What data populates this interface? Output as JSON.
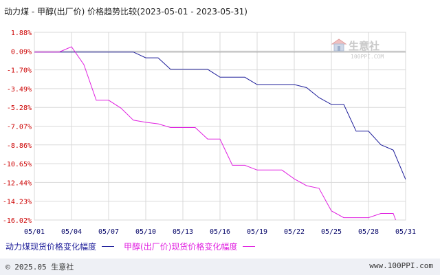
{
  "title": "动力煤 - 甲醇(出厂价) 价格趋势比较(2023-05-01 - 2023-05-31)",
  "watermark": {
    "text": "生意社",
    "url": "100PPI.COM"
  },
  "legend": [
    {
      "label": "动力煤现货价格变化幅度",
      "color": "#1c1c99"
    },
    {
      "label": "甲醇(出厂价)现货价格变化幅度",
      "color": "#e020e0"
    }
  ],
  "footer": {
    "left": "© 2025.05 生意社",
    "right": "www.100PPI.com"
  },
  "colors": {
    "axis_text_y": "#cc0000",
    "axis_text_x": "#000066",
    "grid": "#d9d9d9",
    "zero_line": "#999999"
  },
  "chart_data": {
    "type": "line",
    "x_tick_labels": [
      "05/01",
      "05/04",
      "05/07",
      "05/10",
      "05/13",
      "05/16",
      "05/19",
      "05/22",
      "05/25",
      "05/28",
      "05/31"
    ],
    "y_tick_labels": [
      "1.88%",
      "0.09%",
      "-1.70%",
      "-3.49%",
      "-5.28%",
      "-7.07%",
      "-8.86%",
      "-10.65%",
      "-12.44%",
      "-14.23%",
      "-16.02%"
    ],
    "ylim": [
      -16.02,
      1.88
    ],
    "xlim": [
      1,
      31
    ],
    "series": [
      {
        "name": "动力煤现货价格变化幅度",
        "color": "#1c1c99",
        "points": [
          [
            1,
            0.0
          ],
          [
            4,
            0.0
          ],
          [
            5,
            0.0
          ],
          [
            6,
            0.0
          ],
          [
            7,
            0.0
          ],
          [
            8,
            0.0
          ],
          [
            9,
            0.0
          ],
          [
            10,
            -0.55
          ],
          [
            11,
            -0.55
          ],
          [
            12,
            -1.65
          ],
          [
            13,
            -1.65
          ],
          [
            14,
            -1.65
          ],
          [
            15,
            -1.65
          ],
          [
            16,
            -2.4
          ],
          [
            17,
            -2.4
          ],
          [
            18,
            -2.4
          ],
          [
            19,
            -3.1
          ],
          [
            20,
            -3.1
          ],
          [
            21,
            -3.1
          ],
          [
            22,
            -3.1
          ],
          [
            23,
            -3.4
          ],
          [
            24,
            -4.35
          ],
          [
            25,
            -5.0
          ],
          [
            26,
            -5.0
          ],
          [
            27,
            -7.55
          ],
          [
            28,
            -7.55
          ],
          [
            29,
            -8.85
          ],
          [
            30,
            -9.35
          ],
          [
            31,
            -12.15
          ]
        ]
      },
      {
        "name": "甲醇(出厂价)现货价格变化幅度",
        "color": "#e020e0",
        "points": [
          [
            1,
            0.0
          ],
          [
            2,
            0.0
          ],
          [
            3,
            0.0
          ],
          [
            4,
            0.5
          ],
          [
            5,
            -1.2
          ],
          [
            6,
            -4.6
          ],
          [
            7,
            -4.6
          ],
          [
            8,
            -5.35
          ],
          [
            9,
            -6.5
          ],
          [
            10,
            -6.7
          ],
          [
            11,
            -6.85
          ],
          [
            12,
            -7.2
          ],
          [
            13,
            -7.2
          ],
          [
            14,
            -7.2
          ],
          [
            15,
            -8.3
          ],
          [
            16,
            -8.3
          ],
          [
            17,
            -10.8
          ],
          [
            18,
            -10.8
          ],
          [
            19,
            -11.25
          ],
          [
            20,
            -11.25
          ],
          [
            21,
            -11.25
          ],
          [
            22,
            -12.1
          ],
          [
            23,
            -12.75
          ],
          [
            24,
            -13.0
          ],
          [
            25,
            -15.15
          ],
          [
            26,
            -15.8
          ],
          [
            27,
            -15.8
          ],
          [
            28,
            -15.8
          ],
          [
            29,
            -15.4
          ],
          [
            30,
            -15.4
          ],
          [
            31,
            -18.6
          ]
        ]
      }
    ]
  }
}
